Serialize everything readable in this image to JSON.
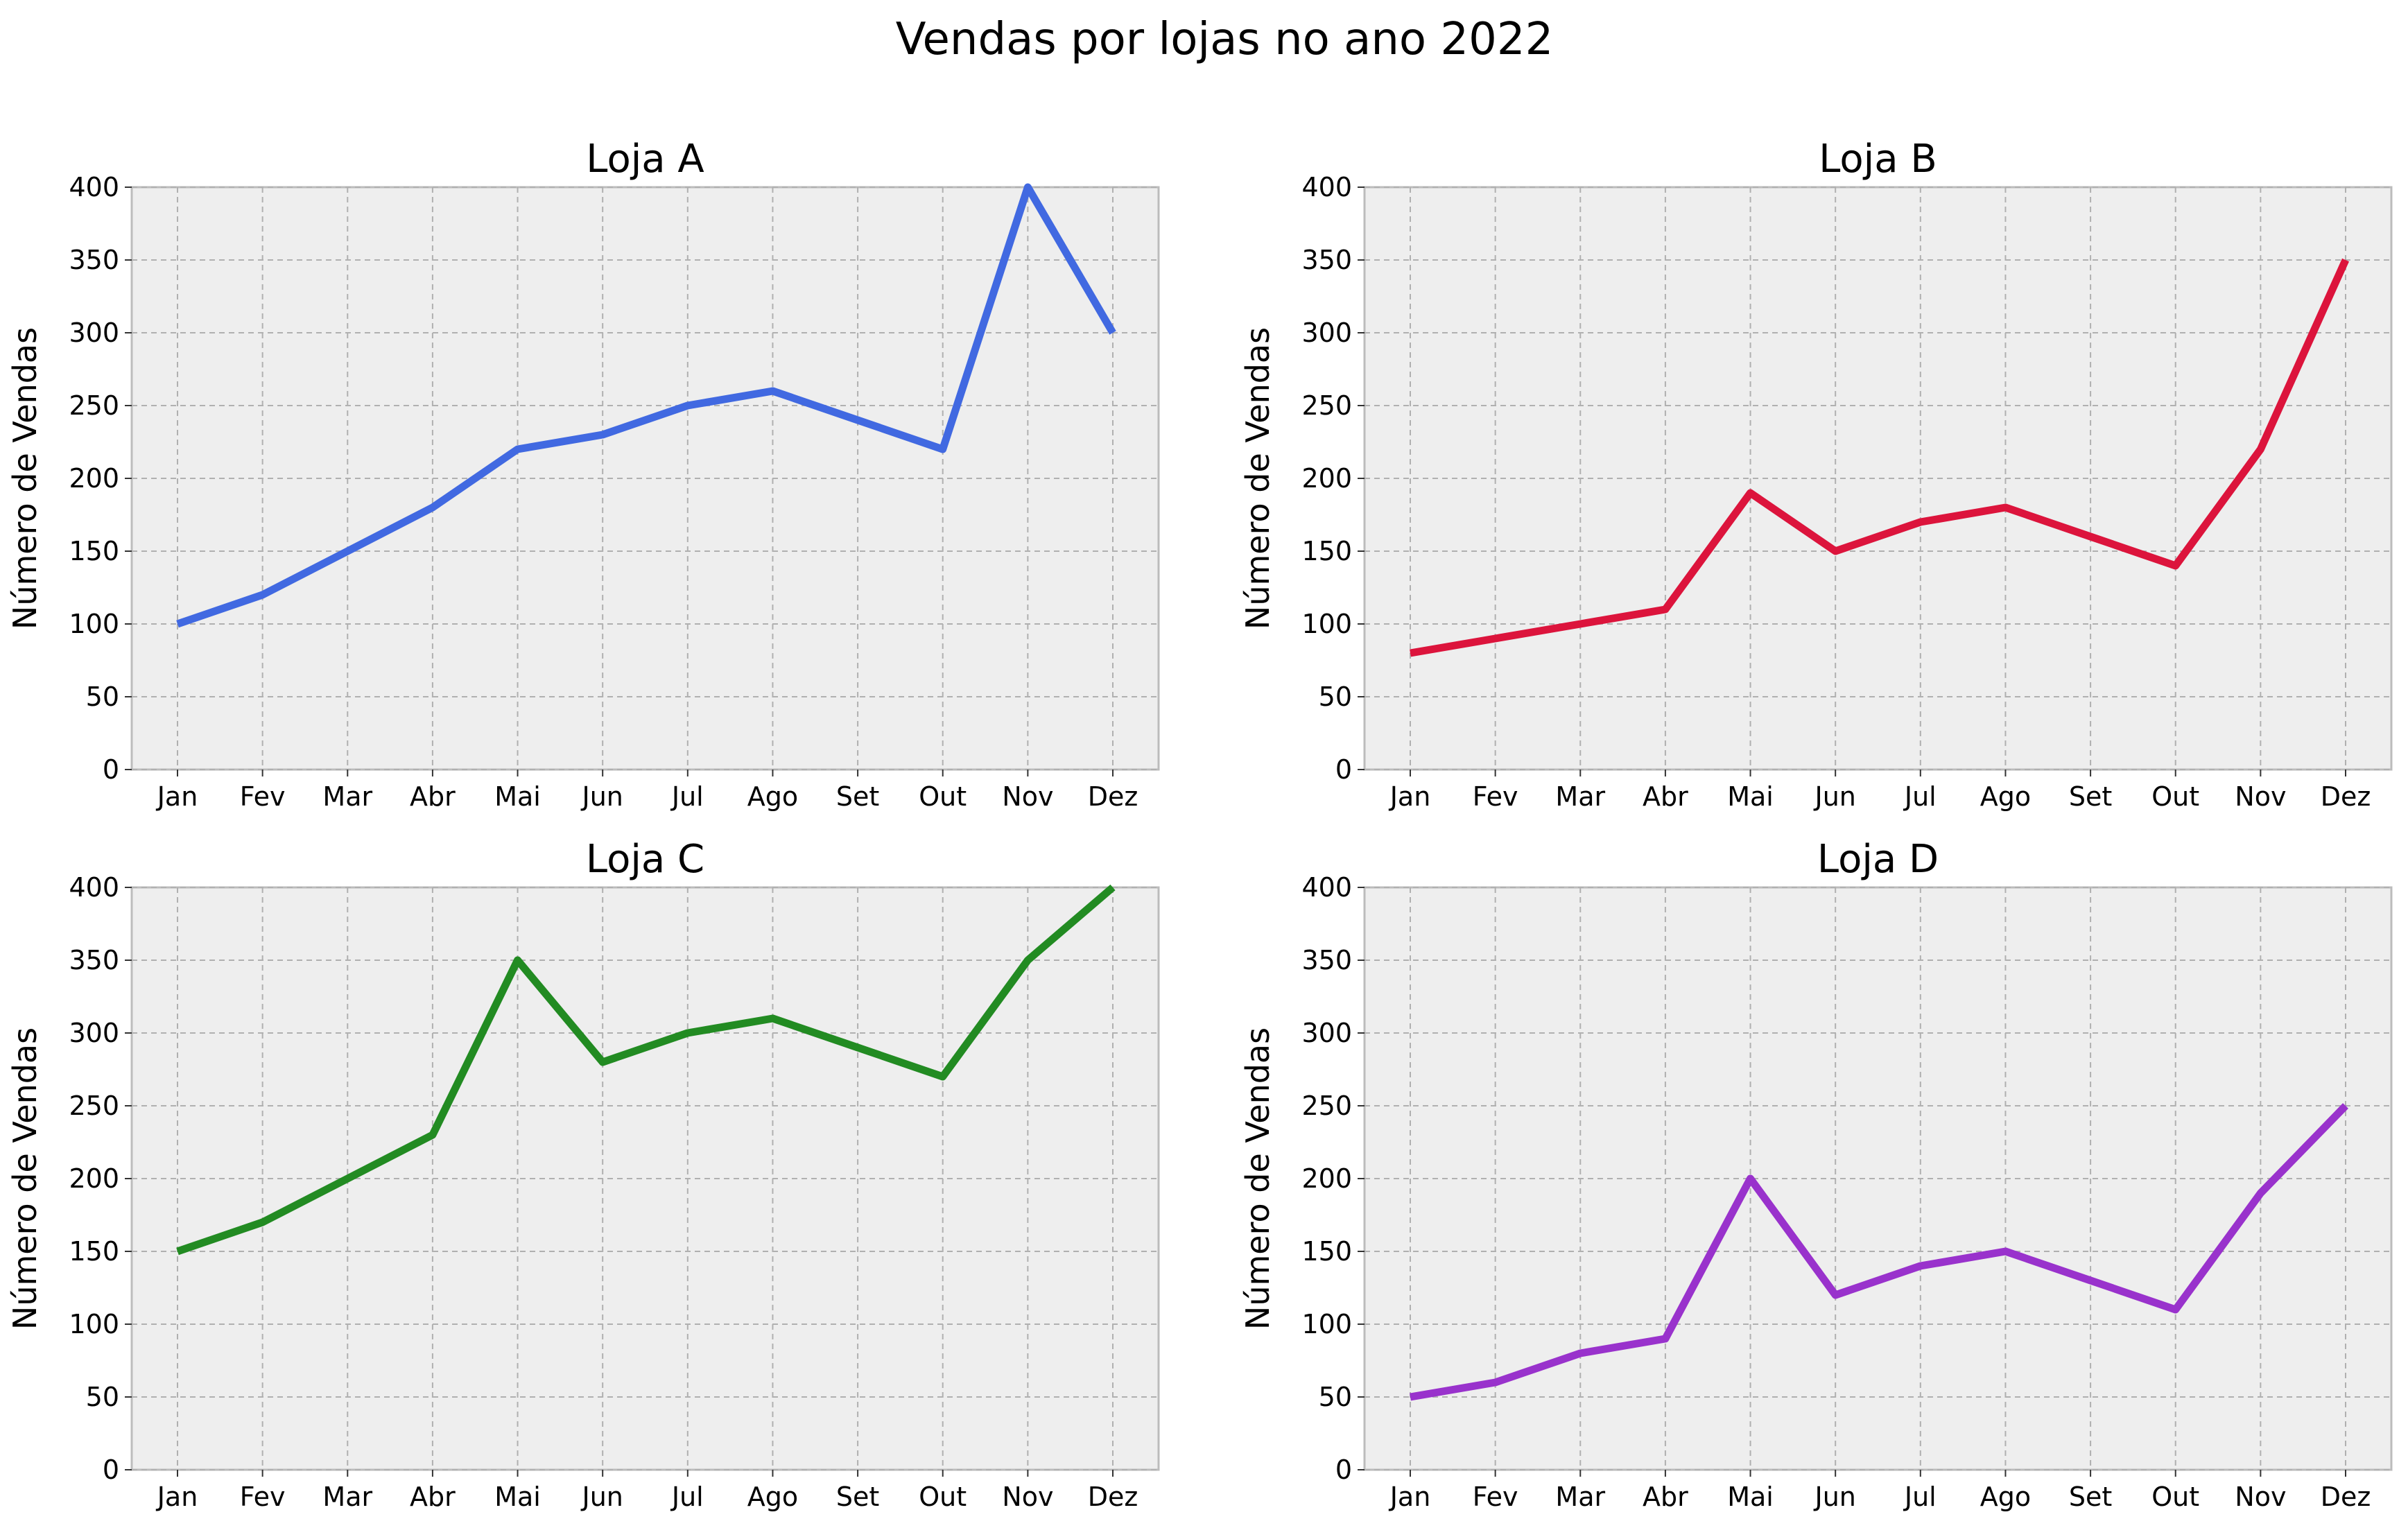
{
  "figure": {
    "suptitle": "Vendas por lojas no ano 2022"
  },
  "chart_data": [
    {
      "type": "line",
      "title": "Loja A",
      "xlabel": "",
      "ylabel": "Número de Vendas",
      "categories": [
        "Jan",
        "Fev",
        "Mar",
        "Abr",
        "Mai",
        "Jun",
        "Jul",
        "Ago",
        "Set",
        "Out",
        "Nov",
        "Dez"
      ],
      "series": [
        {
          "values": [
            100,
            120,
            150,
            180,
            220,
            230,
            250,
            260,
            240,
            220,
            400,
            300
          ],
          "color": "#4169e1"
        }
      ],
      "ylim": [
        0,
        400
      ],
      "yticks": [
        0,
        50,
        100,
        150,
        200,
        250,
        300,
        350,
        400
      ],
      "grid": true
    },
    {
      "type": "line",
      "title": "Loja B",
      "xlabel": "",
      "ylabel": "Número de Vendas",
      "categories": [
        "Jan",
        "Fev",
        "Mar",
        "Abr",
        "Mai",
        "Jun",
        "Jul",
        "Ago",
        "Set",
        "Out",
        "Nov",
        "Dez"
      ],
      "series": [
        {
          "values": [
            80,
            90,
            100,
            110,
            190,
            150,
            170,
            180,
            160,
            140,
            220,
            350
          ],
          "color": "#dc143c"
        }
      ],
      "ylim": [
        0,
        400
      ],
      "yticks": [
        0,
        50,
        100,
        150,
        200,
        250,
        300,
        350,
        400
      ],
      "grid": true
    },
    {
      "type": "line",
      "title": "Loja C",
      "xlabel": "",
      "ylabel": "Número de Vendas",
      "categories": [
        "Jan",
        "Fev",
        "Mar",
        "Abr",
        "Mai",
        "Jun",
        "Jul",
        "Ago",
        "Set",
        "Out",
        "Nov",
        "Dez"
      ],
      "series": [
        {
          "values": [
            150,
            170,
            200,
            230,
            350,
            280,
            300,
            310,
            290,
            270,
            350,
            400
          ],
          "color": "#228b22"
        }
      ],
      "ylim": [
        0,
        400
      ],
      "yticks": [
        0,
        50,
        100,
        150,
        200,
        250,
        300,
        350,
        400
      ],
      "grid": true
    },
    {
      "type": "line",
      "title": "Loja D",
      "xlabel": "",
      "ylabel": "Número de Vendas",
      "categories": [
        "Jan",
        "Fev",
        "Mar",
        "Abr",
        "Mai",
        "Jun",
        "Jul",
        "Ago",
        "Set",
        "Out",
        "Nov",
        "Dez"
      ],
      "series": [
        {
          "values": [
            50,
            60,
            80,
            90,
            200,
            120,
            140,
            150,
            130,
            110,
            190,
            250
          ],
          "color": "#9932cc"
        }
      ],
      "ylim": [
        0,
        400
      ],
      "yticks": [
        0,
        50,
        100,
        150,
        200,
        250,
        300,
        350,
        400
      ],
      "grid": true
    }
  ]
}
